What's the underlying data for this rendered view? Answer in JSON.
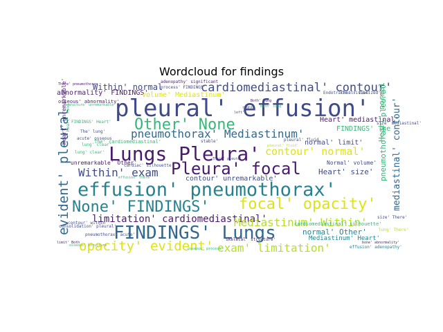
{
  "title": "Wordcloud for findings",
  "colors": {
    "dark_purple": "#481a6c",
    "indigo": "#3e4a89",
    "slate": "#31688e",
    "teal": "#26828e",
    "green_teal": "#1f9e89",
    "green": "#35b779",
    "lime": "#6ece58",
    "yellow_green": "#b5de2b",
    "yellow": "#dde318"
  },
  "words": [
    {
      "text": "pleural' effusion'",
      "color": "indigo"
    },
    {
      "text": "Lungs Pleura'",
      "color": "dark_purple"
    },
    {
      "text": "Pleura' focal",
      "color": "dark_purple"
    },
    {
      "text": "effusion' pneumothorax'",
      "color": "teal"
    },
    {
      "text": "FINDINGS' Lungs",
      "color": "slate"
    },
    {
      "text": "None' FINDINGS'",
      "color": "teal"
    },
    {
      "text": "focal' opacity'",
      "color": "yellow"
    },
    {
      "text": "Other' None",
      "color": "green"
    },
    {
      "text": "opacity' evident'",
      "color": "yellow"
    },
    {
      "text": "cardiomediastinal' contour'",
      "color": "indigo"
    },
    {
      "text": "pneumothorax' Mediastinum'",
      "color": "slate"
    },
    {
      "text": "evident' pleural",
      "color": "slate"
    },
    {
      "text": "Within' exam",
      "color": "indigo"
    },
    {
      "text": "exam' limitation'",
      "color": "yellow_green"
    },
    {
      "text": "limitation' cardiomediastinal'",
      "color": "dark_purple"
    },
    {
      "text": "Mediastinum' Within'",
      "color": "yellow_green"
    },
    {
      "text": "contour' normal'",
      "color": "yellow"
    },
    {
      "text": "mediastinal' contour'",
      "color": "slate"
    },
    {
      "text": "Within' normal",
      "color": "indigo"
    },
    {
      "text": "abnormality' FINDINGS'",
      "color": "dark_purple"
    },
    {
      "text": "volume' Mediastinum'",
      "color": "yellow"
    },
    {
      "text": "Heart' size'",
      "color": "indigo"
    },
    {
      "text": "normal' limit'",
      "color": "indigo"
    },
    {
      "text": "contour' unremarkable'",
      "color": "indigo"
    },
    {
      "text": "Heart' mediastinal'",
      "color": "dark_purple"
    },
    {
      "text": "normal' Other'",
      "color": "teal"
    },
    {
      "text": "Mediastinum' Heart'",
      "color": "teal"
    },
    {
      "text": "unremarkable' Other'",
      "color": "dark_purple"
    },
    {
      "text": "pneumothorax' pleural",
      "color": "green"
    },
    {
      "text": "FINDINGS' The",
      "color": "green"
    },
    {
      "text": "Normal' volume'",
      "color": "indigo"
    },
    {
      "text": "pleural' fluid",
      "color": "indigo"
    },
    {
      "text": "Heart' normal",
      "color": "green"
    },
    {
      "text": "osseous' abnormality'",
      "color": "dark_purple"
    },
    {
      "text": "adenopathy' significant",
      "color": "dark_purple"
    },
    {
      "text": "process' FINDINGS'",
      "color": "indigo"
    },
    {
      "text": "There' pneumothorax",
      "color": "dark_purple"
    },
    {
      "text": "cardiomediastinal' silhouette'",
      "color": "green"
    },
    {
      "text": "limit' Both",
      "color": "dark_purple"
    },
    {
      "text": "Heart' unremarkable'",
      "color": "dark_purple"
    },
    {
      "text": "skeletal' structure'",
      "color": "dark_purple"
    },
    {
      "text": "The' lung'",
      "color": "indigo"
    },
    {
      "text": "lung' clear'",
      "color": "green"
    },
    {
      "text": "acute' osseous",
      "color": "indigo"
    },
    {
      "text": "FINDINGS' Heart'",
      "color": "green"
    },
    {
      "text": "The' cardiomediastinal'",
      "color": "green"
    },
    {
      "text": "cardiac' silhouette'",
      "color": "indigo"
    },
    {
      "text": "Endotracheal' tube'",
      "color": "indigo"
    },
    {
      "text": "The' visualized'",
      "color": "indigo"
    },
    {
      "text": "stable'",
      "color": "indigo"
    },
    {
      "text": "bone' abnormality'",
      "color": "dark_purple"
    },
    {
      "text": "effusion' adenopathy'",
      "color": "teal"
    },
    {
      "text": "consolidation' pleural'",
      "color": "indigo"
    },
    {
      "text": "osseous' process'",
      "color": "green"
    },
    {
      "text": "size' mediastinal'",
      "color": "indigo"
    },
    {
      "text": "Heart' lung",
      "color": "green"
    },
    {
      "text": "lung' There'",
      "color": "yellow_green"
    },
    {
      "text": "Both' lung'",
      "color": "green"
    },
    {
      "text": "right",
      "color": "indigo"
    },
    {
      "text": "left'",
      "color": "indigo"
    },
    {
      "text": "Both' lung",
      "color": "dark_purple"
    },
    {
      "text": "There' pleural",
      "color": "indigo"
    },
    {
      "text": "pleural' fluid'",
      "color": "yellow_green"
    },
    {
      "text": "size' There'",
      "color": "indigo"
    },
    {
      "text": "effusion' There'",
      "color": "green"
    },
    {
      "text": "pneumothorax' acute'",
      "color": "indigo"
    },
    {
      "text": "structure' unremarkable'",
      "color": "green"
    },
    {
      "text": "osseous' structure",
      "color": "green"
    },
    {
      "text": "contour' within'",
      "color": "indigo"
    },
    {
      "text": "lung' clear'",
      "color": "green"
    }
  ]
}
